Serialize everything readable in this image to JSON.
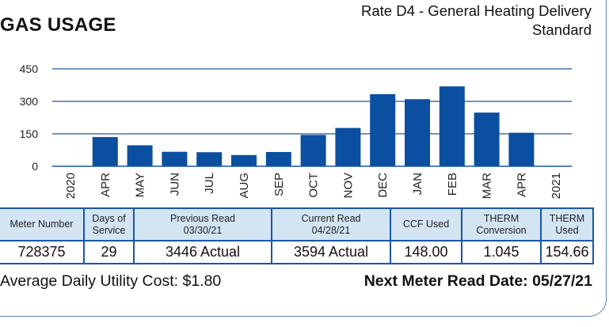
{
  "title": "GAS USAGE",
  "rate_line1": "Rate D4 - General Heating Delivery",
  "rate_line2": "Standard",
  "chart_data": {
    "type": "bar",
    "categories": [
      "2020",
      "APR",
      "MAY",
      "JUN",
      "JUL",
      "AUG",
      "SEP",
      "OCT",
      "NOV",
      "DEC",
      "JAN",
      "FEB",
      "MAR",
      "APR",
      "2021"
    ],
    "values": [
      null,
      135,
      97,
      67,
      65,
      52,
      66,
      145,
      177,
      333,
      310,
      369,
      248,
      155,
      null
    ],
    "yticks": [
      0,
      150,
      300,
      450
    ],
    "ylim": [
      0,
      450
    ],
    "bar_color": "#0b4fa0",
    "axis_color": "#1b57a0"
  },
  "table": {
    "headers": [
      [
        "Meter Number"
      ],
      [
        "Days of",
        "Service"
      ],
      [
        "Previous Read",
        "03/30/21"
      ],
      [
        "Current Read",
        "04/28/21"
      ],
      [
        "CCF Used"
      ],
      [
        "THERM",
        "Conversion"
      ],
      [
        "THERM",
        "Used"
      ]
    ],
    "values": [
      "728375",
      "29",
      "3446 Actual",
      "3594 Actual",
      "148.00",
      "1.045",
      "154.66"
    ]
  },
  "average_daily_cost": "Average Daily Utility Cost: $1.80",
  "next_read": "Next Meter Read Date: 05/27/21"
}
